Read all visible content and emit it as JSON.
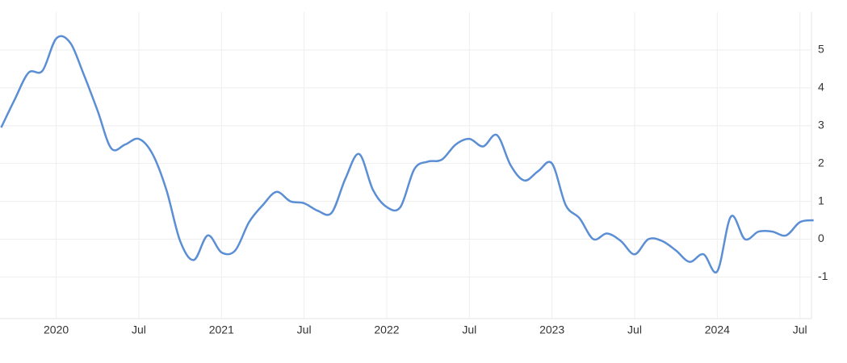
{
  "chart_data": {
    "type": "line",
    "color": "#5b8ed4",
    "grid": true,
    "x": [
      2019.667,
      2019.75,
      2019.833,
      2019.917,
      2020.0,
      2020.083,
      2020.167,
      2020.25,
      2020.333,
      2020.417,
      2020.5,
      2020.583,
      2020.667,
      2020.75,
      2020.833,
      2020.917,
      2021.0,
      2021.083,
      2021.167,
      2021.25,
      2021.333,
      2021.417,
      2021.5,
      2021.583,
      2021.667,
      2021.75,
      2021.833,
      2021.917,
      2022.0,
      2022.083,
      2022.167,
      2022.25,
      2022.333,
      2022.417,
      2022.5,
      2022.583,
      2022.667,
      2022.75,
      2022.833,
      2022.917,
      2023.0,
      2023.083,
      2023.167,
      2023.25,
      2023.333,
      2023.417,
      2023.5,
      2023.583,
      2023.667,
      2023.75,
      2023.833,
      2023.917,
      2024.0,
      2024.083,
      2024.167,
      2024.25,
      2024.333,
      2024.417,
      2024.5,
      2024.583
    ],
    "values": [
      2.95,
      3.7,
      4.4,
      4.45,
      5.3,
      5.2,
      4.35,
      3.4,
      2.4,
      2.5,
      2.65,
      2.25,
      1.3,
      -0.05,
      -0.55,
      0.1,
      -0.35,
      -0.3,
      0.45,
      0.9,
      1.25,
      1.0,
      0.95,
      0.75,
      0.7,
      1.6,
      2.25,
      1.3,
      0.85,
      0.85,
      1.85,
      2.05,
      2.1,
      2.5,
      2.65,
      2.45,
      2.75,
      1.95,
      1.55,
      1.8,
      2.0,
      0.9,
      0.55,
      0.0,
      0.15,
      -0.05,
      -0.4,
      0.0,
      -0.05,
      -0.3,
      -0.6,
      -0.4,
      -0.85,
      0.6,
      0.0,
      0.2,
      0.2,
      0.1,
      0.45,
      0.5
    ],
    "xlim": [
      2019.66,
      2024.57
    ],
    "xticks": [
      {
        "value": 2020,
        "label": "2020"
      },
      {
        "value": 2020.5,
        "label": "Jul"
      },
      {
        "value": 2021,
        "label": "2021"
      },
      {
        "value": 2021.5,
        "label": "Jul"
      },
      {
        "value": 2022,
        "label": "2022"
      },
      {
        "value": 2022.5,
        "label": "Jul"
      },
      {
        "value": 2023,
        "label": "2023"
      },
      {
        "value": 2023.5,
        "label": "Jul"
      },
      {
        "value": 2024,
        "label": "2024"
      },
      {
        "value": 2024.5,
        "label": "Jul"
      }
    ],
    "ylim": [
      -2.1,
      6
    ],
    "yticks": [
      -1,
      0,
      1,
      2,
      3,
      4,
      5
    ]
  }
}
